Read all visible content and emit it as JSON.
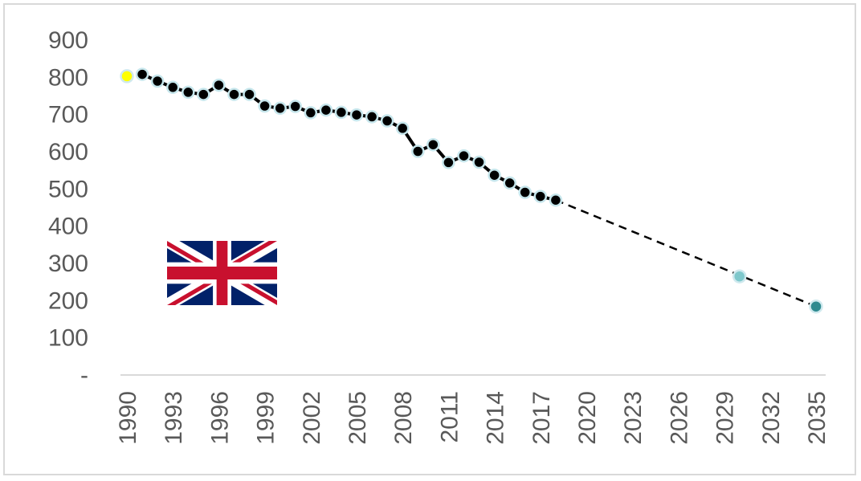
{
  "chart_data": {
    "type": "line",
    "title": "",
    "xlabel": "",
    "ylabel": "",
    "xlim": [
      1990,
      2035
    ],
    "ylim": [
      0,
      900
    ],
    "y_ticks": [
      {
        "value": 0,
        "label": "-"
      },
      {
        "value": 100,
        "label": "100"
      },
      {
        "value": 200,
        "label": "200"
      },
      {
        "value": 300,
        "label": "300"
      },
      {
        "value": 400,
        "label": "400"
      },
      {
        "value": 500,
        "label": "500"
      },
      {
        "value": 600,
        "label": "600"
      },
      {
        "value": 700,
        "label": "700"
      },
      {
        "value": 800,
        "label": "800"
      },
      {
        "value": 900,
        "label": "900"
      }
    ],
    "x_ticks": [
      "1990",
      "1993",
      "1996",
      "1999",
      "2002",
      "2005",
      "2008",
      "2011",
      "2014",
      "2017",
      "2020",
      "2023",
      "2026",
      "2029",
      "2032",
      "2035"
    ],
    "grid": false,
    "legend": "none",
    "series": [
      {
        "style": "solid",
        "color": "#000000",
        "marker_edge": "#c6e6ec",
        "x": [
          1991,
          1992,
          1993,
          1994,
          1995,
          1996,
          1997,
          1998,
          1999,
          2000,
          2001,
          2002,
          2003,
          2004,
          2005,
          2006,
          2007,
          2008,
          2009,
          2010,
          2011,
          2012,
          2013,
          2014,
          2015,
          2016,
          2017,
          2018
        ],
        "y": [
          808,
          790,
          773,
          760,
          754,
          779,
          754,
          754,
          723,
          717,
          722,
          705,
          712,
          706,
          699,
          694,
          683,
          663,
          601,
          619,
          571,
          589,
          572,
          537,
          516,
          491,
          480,
          470
        ]
      },
      {
        "style": "dashed",
        "color": "#000000",
        "x": [
          2018,
          2035
        ],
        "y": [
          470,
          184
        ]
      }
    ],
    "highlight_points": [
      {
        "x": 1990,
        "y": 803,
        "color": "#ffff00"
      },
      {
        "x": 2030,
        "y": 265,
        "color": "#7ec8cc"
      },
      {
        "x": 2035,
        "y": 184,
        "color": "#2e8a8f"
      }
    ]
  },
  "flag": {
    "icon": "union-jack-flag-icon",
    "colors": {
      "blue": "#012169",
      "red": "#c8102e",
      "white": "#ffffff"
    }
  }
}
